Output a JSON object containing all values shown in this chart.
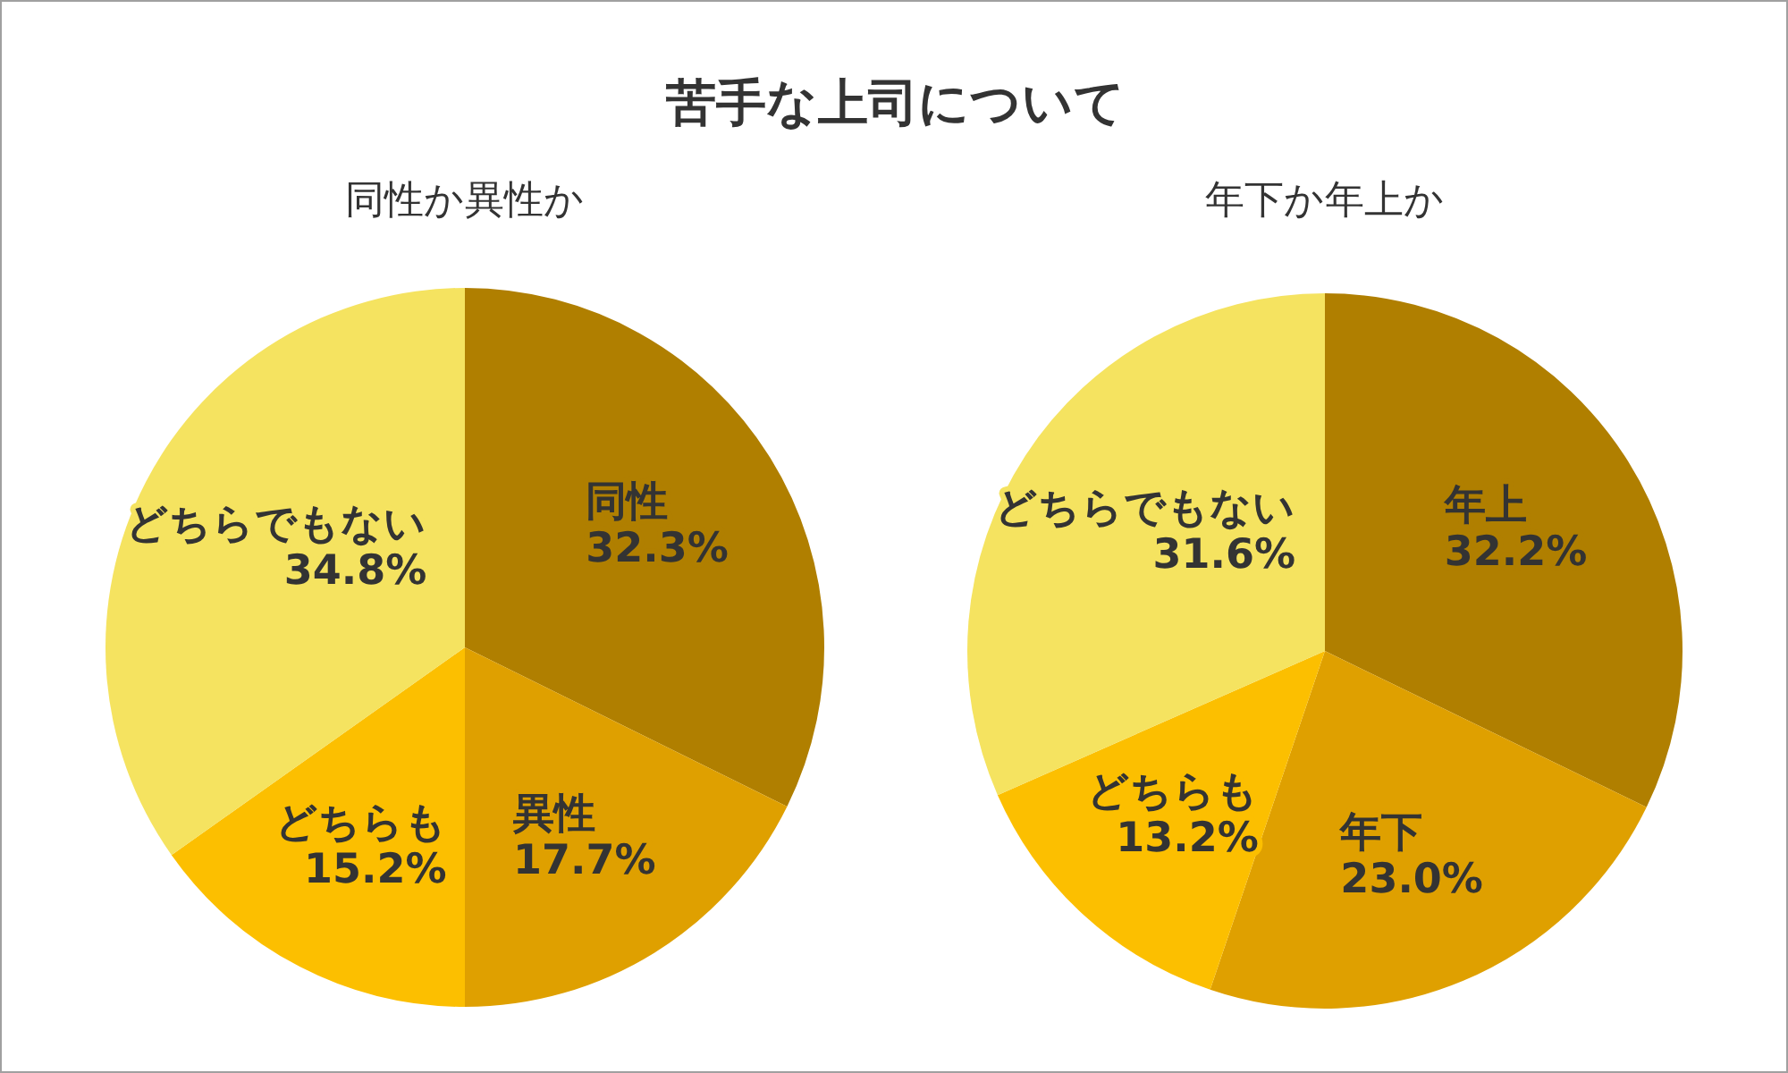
{
  "chart_data": [
    {
      "type": "pie",
      "title": "苦手な上司について",
      "subtitle": "同性か異性か",
      "categories": [
        "同性",
        "異性",
        "どちらも",
        "どちらでもない"
      ],
      "values": [
        32.3,
        17.7,
        15.2,
        34.8
      ],
      "value_labels": [
        "32.3%",
        "17.7%",
        "15.2%",
        "34.8%"
      ],
      "colors": [
        "#b07f00",
        "#dfa000",
        "#fcbf00",
        "#f5e360"
      ]
    },
    {
      "type": "pie",
      "subtitle": "年下か年上か",
      "categories": [
        "年上",
        "年下",
        "どちらも",
        "どちらでもない"
      ],
      "values": [
        32.2,
        23.0,
        13.2,
        31.6
      ],
      "value_labels": [
        "32.2%",
        "23.0%",
        "13.2%",
        "31.6%"
      ],
      "colors": [
        "#b07f00",
        "#dfa000",
        "#fcbf00",
        "#f5e360"
      ]
    }
  ]
}
